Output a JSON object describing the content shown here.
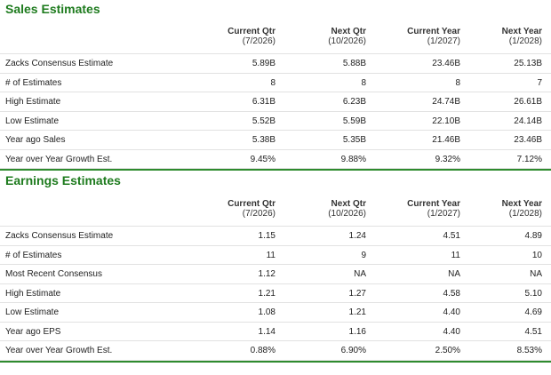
{
  "sales": {
    "title": "Sales Estimates",
    "columns": [
      {
        "name": "Current Qtr",
        "period": "(7/2026)"
      },
      {
        "name": "Next Qtr",
        "period": "(10/2026)"
      },
      {
        "name": "Current Year",
        "period": "(1/2027)"
      },
      {
        "name": "Next Year",
        "period": "(1/2028)"
      }
    ],
    "rows": [
      {
        "label": "Zacks Consensus Estimate",
        "values": [
          "5.89B",
          "5.88B",
          "23.46B",
          "25.13B"
        ]
      },
      {
        "label": "# of Estimates",
        "values": [
          "8",
          "8",
          "8",
          "7"
        ]
      },
      {
        "label": "High Estimate",
        "values": [
          "6.31B",
          "6.23B",
          "24.74B",
          "26.61B"
        ]
      },
      {
        "label": "Low Estimate",
        "values": [
          "5.52B",
          "5.59B",
          "22.10B",
          "24.14B"
        ]
      },
      {
        "label": "Year ago Sales",
        "values": [
          "5.38B",
          "5.35B",
          "21.46B",
          "23.46B"
        ]
      },
      {
        "label": "Year over Year Growth Est.",
        "values": [
          "9.45%",
          "9.88%",
          "9.32%",
          "7.12%"
        ]
      }
    ]
  },
  "earnings": {
    "title": "Earnings Estimates",
    "columns": [
      {
        "name": "Current Qtr",
        "period": "(7/2026)"
      },
      {
        "name": "Next Qtr",
        "period": "(10/2026)"
      },
      {
        "name": "Current Year",
        "period": "(1/2027)"
      },
      {
        "name": "Next Year",
        "period": "(1/2028)"
      }
    ],
    "rows": [
      {
        "label": "Zacks Consensus Estimate",
        "values": [
          "1.15",
          "1.24",
          "4.51",
          "4.89"
        ]
      },
      {
        "label": "# of Estimates",
        "values": [
          "11",
          "9",
          "11",
          "10"
        ]
      },
      {
        "label": "Most Recent Consensus",
        "values": [
          "1.12",
          "NA",
          "NA",
          "NA"
        ]
      },
      {
        "label": "High Estimate",
        "values": [
          "1.21",
          "1.27",
          "4.58",
          "5.10"
        ]
      },
      {
        "label": "Low Estimate",
        "values": [
          "1.08",
          "1.21",
          "4.40",
          "4.69"
        ]
      },
      {
        "label": "Year ago EPS",
        "values": [
          "1.14",
          "1.16",
          "4.40",
          "4.51"
        ]
      },
      {
        "label": "Year over Year Growth Est.",
        "values": [
          "0.88%",
          "6.90%",
          "2.50%",
          "8.53%"
        ]
      }
    ]
  },
  "colors": {
    "accent": "#1e7b1e",
    "rule": "#2e8b2e",
    "divider": "#e2e2e2"
  }
}
